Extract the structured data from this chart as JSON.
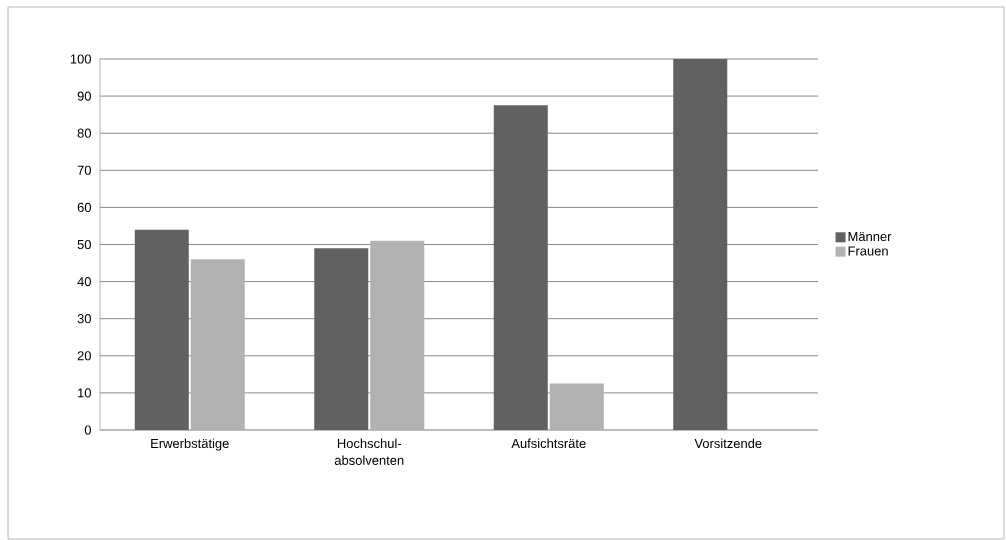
{
  "chart_data": {
    "type": "bar",
    "categories": [
      "Erwerbstätige",
      "Hochschul-absolventen",
      "Aufsichtsräte",
      "Vorsitzende"
    ],
    "series": [
      {
        "name": "Männer",
        "color": "#616161",
        "values": [
          54,
          49,
          87.5,
          100
        ]
      },
      {
        "name": "Frauen",
        "color": "#b2b2b2",
        "values": [
          46,
          51,
          12.5,
          0
        ]
      }
    ],
    "ylim": [
      0,
      100
    ],
    "yticks": [
      0,
      10,
      20,
      30,
      40,
      50,
      60,
      70,
      80,
      90,
      100
    ],
    "grid": "y",
    "legend": "right"
  }
}
